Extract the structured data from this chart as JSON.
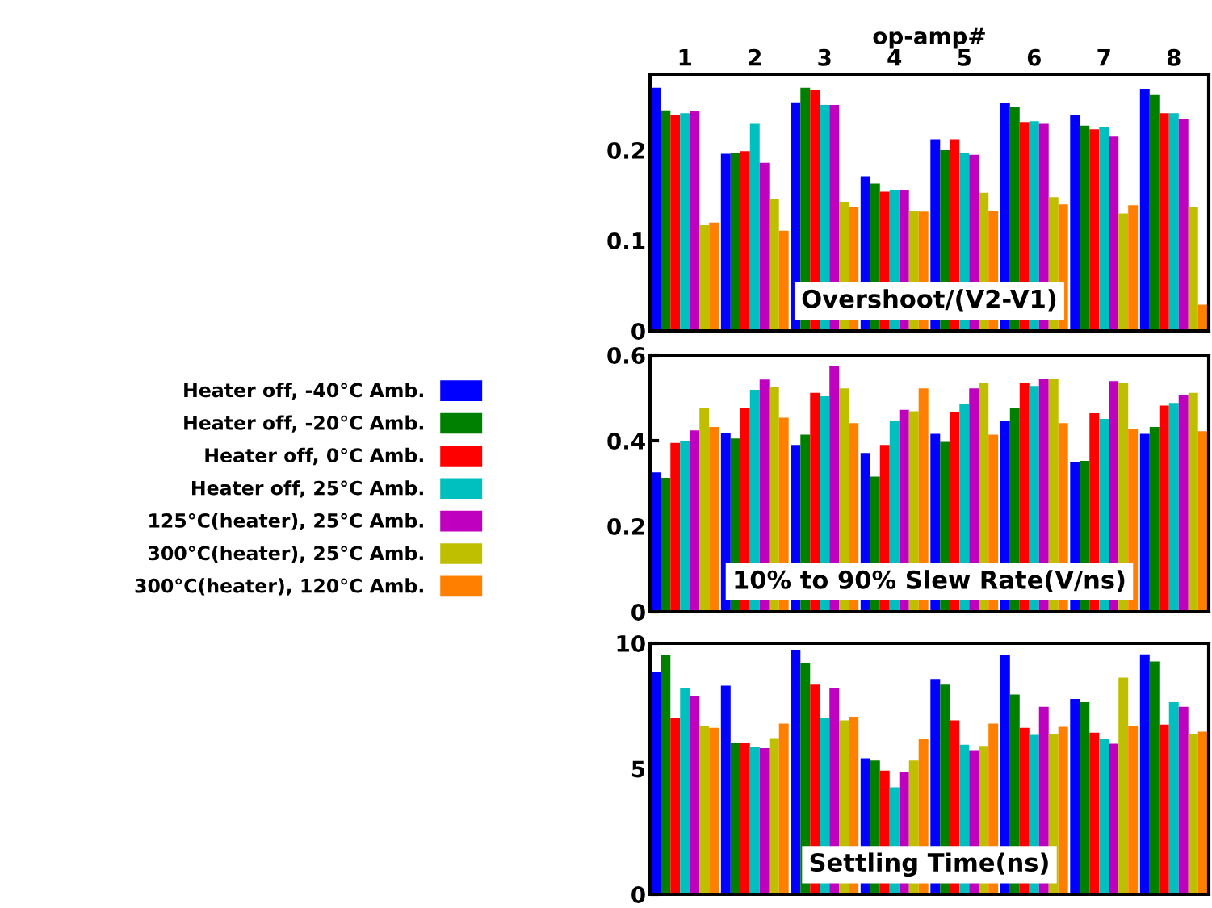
{
  "chart_data": [
    {
      "type": "bar",
      "title": "Overshoot/(V2-V1)",
      "xlabel": "op-amp#",
      "categories": [
        "1",
        "2",
        "3",
        "4",
        "5",
        "6",
        "7",
        "8"
      ],
      "ylim": [
        0,
        0.284
      ],
      "yticks": [
        0,
        0.1,
        0.2
      ],
      "legend": "left",
      "tick_labels": "xy",
      "series": [
        {
          "name": "Heater off, -40°C Amb.",
          "color": "#0000ff",
          "values": [
            0.269,
            0.196,
            0.253,
            0.171,
            0.212,
            0.252,
            0.239,
            0.268
          ]
        },
        {
          "name": "Heater off, -20°C Amb.",
          "color": "#008000",
          "values": [
            0.244,
            0.197,
            0.269,
            0.163,
            0.2,
            0.248,
            0.227,
            0.261
          ]
        },
        {
          "name": "Heater off, 0°C Amb.",
          "color": "#ff0000",
          "values": [
            0.239,
            0.199,
            0.267,
            0.154,
            0.212,
            0.231,
            0.223,
            0.241
          ]
        },
        {
          "name": "Heater off, 25°C Amb.",
          "color": "#00bfbf",
          "values": [
            0.241,
            0.229,
            0.25,
            0.156,
            0.197,
            0.232,
            0.226,
            0.241
          ]
        },
        {
          "name": "125°C(heater), 25°C Amb.",
          "color": "#bf00bf",
          "values": [
            0.243,
            0.186,
            0.25,
            0.156,
            0.195,
            0.229,
            0.215,
            0.234
          ]
        },
        {
          "name": "300°C(heater), 25°C Amb.",
          "color": "#bfbf00",
          "values": [
            0.117,
            0.146,
            0.143,
            0.133,
            0.153,
            0.148,
            0.13,
            0.137
          ]
        },
        {
          "name": "300°C(heater), 120°C Amb.",
          "color": "#ff8000",
          "values": [
            0.12,
            0.111,
            0.137,
            0.132,
            0.133,
            0.14,
            0.139,
            0.029
          ]
        }
      ]
    },
    {
      "type": "bar",
      "title": "10% to 90% Slew Rate(V/ns)",
      "categories": [
        "1",
        "2",
        "3",
        "4",
        "5",
        "6",
        "7",
        "8"
      ],
      "ylim": [
        0,
        0.6
      ],
      "yticks": [
        0,
        0.2,
        0.4,
        0.6
      ],
      "tick_labels": "y",
      "series": [
        {
          "color": "#0000ff",
          "values": [
            0.326,
            0.419,
            0.39,
            0.371,
            0.416,
            0.446,
            0.351,
            0.416
          ]
        },
        {
          "color": "#008000",
          "values": [
            0.313,
            0.405,
            0.414,
            0.316,
            0.397,
            0.477,
            0.353,
            0.432
          ]
        },
        {
          "color": "#ff0000",
          "values": [
            0.395,
            0.477,
            0.512,
            0.39,
            0.467,
            0.536,
            0.464,
            0.482
          ]
        },
        {
          "color": "#00bfbf",
          "values": [
            0.4,
            0.519,
            0.504,
            0.446,
            0.486,
            0.528,
            0.451,
            0.488
          ]
        },
        {
          "color": "#bf00bf",
          "values": [
            0.424,
            0.543,
            0.575,
            0.472,
            0.522,
            0.545,
            0.539,
            0.506
          ]
        },
        {
          "color": "#bfbf00",
          "values": [
            0.477,
            0.525,
            0.522,
            0.469,
            0.536,
            0.545,
            0.536,
            0.512
          ]
        },
        {
          "color": "#ff8000",
          "values": [
            0.432,
            0.454,
            0.441,
            0.522,
            0.414,
            0.441,
            0.427,
            0.422
          ]
        }
      ]
    },
    {
      "type": "bar",
      "title": "Settling Time(ns)",
      "categories": [
        "1",
        "2",
        "3",
        "4",
        "5",
        "6",
        "7",
        "8"
      ],
      "ylim": [
        0,
        10
      ],
      "yticks": [
        0,
        5,
        10
      ],
      "tick_labels": "y",
      "series": [
        {
          "color": "#0000ff",
          "values": [
            8.85,
            8.31,
            9.74,
            5.42,
            8.58,
            9.52,
            7.78,
            9.56
          ]
        },
        {
          "color": "#008000",
          "values": [
            9.52,
            6.04,
            9.2,
            5.33,
            8.35,
            7.96,
            7.65,
            9.28
          ]
        },
        {
          "color": "#ff0000",
          "values": [
            7.02,
            6.04,
            8.35,
            4.93,
            6.93,
            6.63,
            6.44,
            6.76
          ]
        },
        {
          "color": "#00bfbf",
          "values": [
            8.22,
            5.87,
            7.02,
            4.26,
            5.96,
            6.35,
            6.18,
            7.65
          ]
        },
        {
          "color": "#bf00bf",
          "values": [
            7.91,
            5.82,
            8.22,
            4.89,
            5.74,
            7.47,
            6.0,
            7.47
          ]
        },
        {
          "color": "#bfbf00",
          "values": [
            6.7,
            6.22,
            6.93,
            5.33,
            5.91,
            6.39,
            8.63,
            6.39
          ]
        },
        {
          "color": "#ff8000",
          "values": [
            6.63,
            6.8,
            7.07,
            6.18,
            6.8,
            6.67,
            6.72,
            6.48
          ]
        }
      ]
    }
  ]
}
